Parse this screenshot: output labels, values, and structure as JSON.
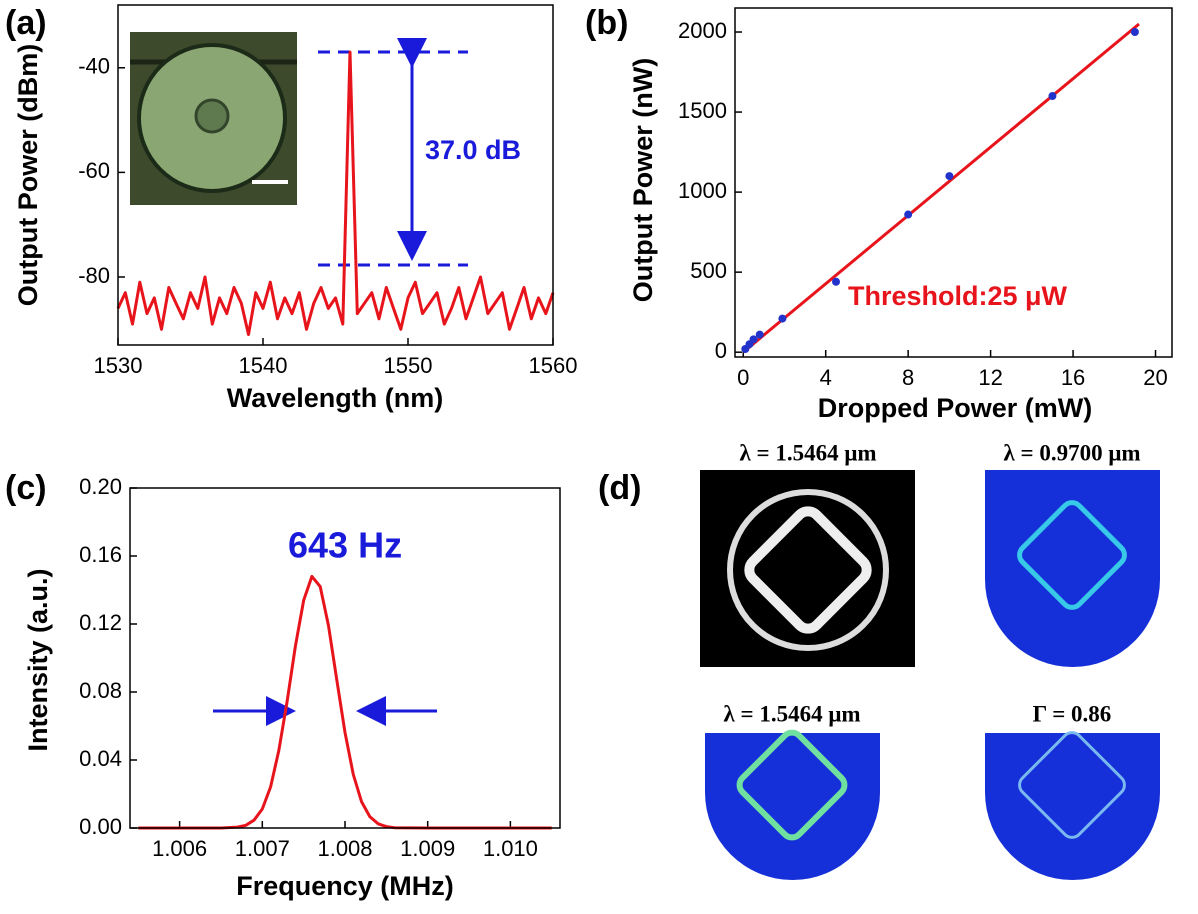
{
  "chart_data": [
    {
      "type": "line",
      "panel": "(a)",
      "x_label": "Wavelength (nm)",
      "y_label": "Output Power (dBm)",
      "annotation": "37.0 dB",
      "xlim": [
        1530,
        1560
      ],
      "ylim": [
        -93,
        -28
      ],
      "xticks": [
        1530,
        1540,
        1550,
        1560
      ],
      "yticks": [
        -80,
        -60,
        -40
      ],
      "x": [
        1530,
        1530.5,
        1531,
        1531.5,
        1532,
        1532.5,
        1533,
        1533.5,
        1534,
        1534.5,
        1535,
        1535.5,
        1536,
        1536.5,
        1537,
        1537.5,
        1538,
        1538.5,
        1539,
        1539.5,
        1540,
        1540.5,
        1541,
        1541.5,
        1542,
        1542.5,
        1543,
        1543.5,
        1544,
        1544.5,
        1545,
        1545.5,
        1546,
        1546.5,
        1547,
        1547.5,
        1548,
        1548.5,
        1549,
        1549.5,
        1550,
        1550.5,
        1551,
        1551.5,
        1552,
        1552.5,
        1553,
        1553.5,
        1554,
        1554.5,
        1555,
        1555.5,
        1556,
        1556.5,
        1557,
        1557.5,
        1558,
        1558.5,
        1559,
        1559.5,
        1560
      ],
      "series": [
        {
          "color": "#e8141c",
          "style": "line",
          "values": [
            -86,
            -83,
            -89,
            -81,
            -87,
            -84,
            -90,
            -82,
            -85,
            -88,
            -83,
            -86,
            -80,
            -89,
            -84,
            -87,
            -82,
            -85,
            -91,
            -83,
            -86,
            -81,
            -88,
            -84,
            -87,
            -83,
            -90,
            -85,
            -82,
            -86,
            -84,
            -89,
            -37,
            -87,
            -85,
            -83,
            -88,
            -82,
            -86,
            -90,
            -84,
            -81,
            -87,
            -85,
            -83,
            -89,
            -86,
            -82,
            -88,
            -84,
            -80,
            -87,
            -85,
            -83,
            -90,
            -86,
            -82,
            -88,
            -84,
            -87,
            -83
          ]
        }
      ]
    },
    {
      "type": "scatter",
      "panel": "(b)",
      "x_label": "Dropped Power (mW)",
      "y_label": "Output Power (nW)",
      "annotation": "Threshold:25 μW",
      "xlim": [
        -0.4,
        20.8
      ],
      "ylim": [
        -30,
        2150
      ],
      "xticks": [
        0,
        4,
        8,
        12,
        16,
        20
      ],
      "yticks": [
        0,
        500,
        1000,
        1500,
        2000
      ],
      "series": [
        {
          "color": "#e8141c",
          "style": "line",
          "x": [
            0,
            19.2
          ],
          "values": [
            0,
            2050
          ]
        },
        {
          "color": "#2233cc",
          "style": "markers",
          "x": [
            0.1,
            0.3,
            0.5,
            0.8,
            1.9,
            4.5,
            8,
            10,
            15,
            19
          ],
          "values": [
            20,
            50,
            80,
            110,
            210,
            440,
            860,
            1100,
            1600,
            2000
          ]
        }
      ]
    },
    {
      "type": "line",
      "panel": "(c)",
      "x_label": "Frequency (MHz)",
      "y_label": "Intensity (a.u.)",
      "annotation": "643 Hz",
      "xlim": [
        1.0054,
        1.0106
      ],
      "ylim": [
        0,
        0.2
      ],
      "xticks": [
        1.006,
        1.007,
        1.008,
        1.009,
        {
          "value": 1.01,
          "label": "1.010"
        }
      ],
      "yticks": [
        {
          "value": 0,
          "label": "0.00"
        },
        {
          "value": 0.04,
          "label": "0.04"
        },
        {
          "value": 0.08,
          "label": "0.08"
        },
        {
          "value": 0.12,
          "label": "0.12"
        },
        {
          "value": 0.16,
          "label": "0.16"
        },
        {
          "value": 0.2,
          "label": "0.20"
        }
      ],
      "x": [
        1.0055,
        1.006,
        1.0065,
        1.0067,
        1.0068,
        1.0069,
        1.007,
        1.0071,
        1.0072,
        1.0073,
        1.0074,
        1.0075,
        1.0076,
        1.0077,
        1.0078,
        1.0079,
        1.008,
        1.0081,
        1.0082,
        1.0083,
        1.0084,
        1.0085,
        1.0086,
        1.009,
        1.0095,
        1.01,
        1.0105
      ],
      "series": [
        {
          "color": "#e8141c",
          "style": "line",
          "values": [
            0,
            0,
            0,
            0.0005,
            0.0016,
            0.0046,
            0.0112,
            0.0242,
            0.0455,
            0.0744,
            0.107,
            0.134,
            0.148,
            0.142,
            0.119,
            0.0875,
            0.0562,
            0.0315,
            0.0155,
            0.0067,
            0.0025,
            0.0008,
            0.0002,
            0,
            0,
            0,
            0
          ]
        }
      ]
    }
  ],
  "panel_d": {
    "panel": "(d)",
    "labels": [
      "λ = 1.5464 μm",
      "λ = 0.9700 μm",
      "λ = 1.5464 μm",
      "Γ = 0.86"
    ]
  }
}
